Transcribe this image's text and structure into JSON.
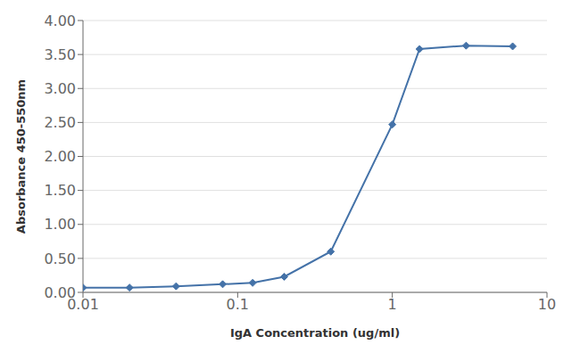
{
  "chart_data": {
    "type": "line",
    "x": [
      0.01,
      0.02,
      0.04,
      0.08,
      0.125,
      0.2,
      0.4,
      1.0,
      1.5,
      3.0,
      6.0
    ],
    "values": [
      0.07,
      0.07,
      0.09,
      0.12,
      0.14,
      0.23,
      0.6,
      2.47,
      3.58,
      3.63,
      3.62
    ],
    "color": "#4472a8",
    "marker": "diamond",
    "xlabel": "IgA Concentration (ug/ml)",
    "ylabel": "Absorbance 450-550nm",
    "log": "x",
    "xlim": [
      0.01,
      10
    ],
    "xticks": [
      0.01,
      0.1,
      1,
      10
    ],
    "ylim": [
      0.0,
      4.0
    ],
    "yticks": [
      {
        "value": 0.0,
        "label": "0.00"
      },
      {
        "value": 0.5,
        "label": "0.50"
      },
      {
        "value": 1.0,
        "label": "1.00"
      },
      {
        "value": 1.5,
        "label": "1.50"
      },
      {
        "value": 2.0,
        "label": "2.00"
      },
      {
        "value": 2.5,
        "label": "2.50"
      },
      {
        "value": 3.0,
        "label": "3.00"
      },
      {
        "value": 3.5,
        "label": "3.50"
      },
      {
        "value": 4.0,
        "label": "4.00"
      }
    ],
    "grid": true
  }
}
